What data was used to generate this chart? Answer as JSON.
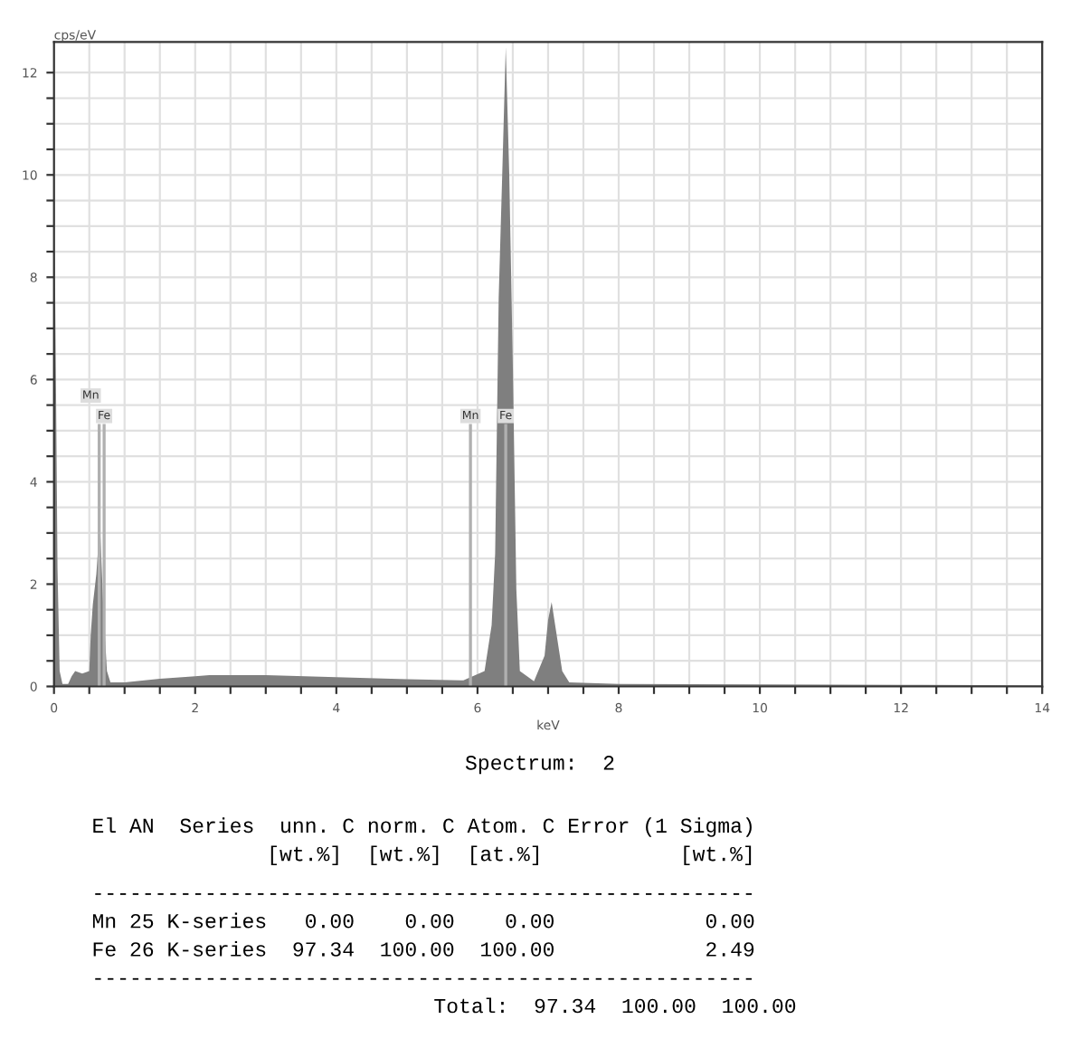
{
  "chart_data": {
    "type": "area",
    "xlabel": "keV",
    "ylabel": "cps/eV",
    "x": [
      0,
      0.01,
      0.03,
      0.05,
      0.08,
      0.12,
      0.2,
      0.25,
      0.3,
      0.4,
      0.5,
      0.52,
      0.55,
      0.6,
      0.65,
      0.7,
      0.75,
      0.8,
      1.0,
      1.5,
      2.0,
      2.2,
      3,
      4,
      5,
      5.8,
      6.1,
      6.2,
      6.25,
      6.3,
      6.35,
      6.4,
      6.45,
      6.5,
      6.55,
      6.6,
      6.8,
      6.95,
      7.0,
      7.05,
      7.1,
      7.2,
      7.3,
      8,
      10,
      12,
      14
    ],
    "series": [
      {
        "color": "#7f7f7f",
        "values": [
          0,
          8.7,
          5.6,
          2.3,
          0.3,
          0.05,
          0.05,
          0.2,
          0.3,
          0.25,
          0.3,
          1.0,
          1.6,
          2.2,
          3.2,
          1.5,
          0.3,
          0.08,
          0.08,
          0.15,
          0.2,
          0.22,
          0.22,
          0.18,
          0.14,
          0.12,
          0.3,
          1.2,
          2.6,
          7.6,
          10,
          12.5,
          10,
          6.3,
          1.9,
          0.3,
          0.1,
          0.6,
          1.3,
          1.65,
          1.2,
          0.3,
          0.08,
          0.05,
          0.04,
          0.03,
          0.02
        ]
      }
    ],
    "xlim": [
      0,
      14
    ],
    "ylim": [
      0,
      12.6
    ],
    "xticks": [
      0,
      {
        "value": 0.5,
        "label": null
      },
      {
        "value": 1,
        "label": null
      },
      {
        "value": 1.5,
        "label": null
      },
      2,
      {
        "value": 2.5,
        "label": null
      },
      {
        "value": 3,
        "label": null
      },
      {
        "value": 3.5,
        "label": null
      },
      4,
      {
        "value": 4.5,
        "label": null
      },
      {
        "value": 5,
        "label": null
      },
      {
        "value": 5.5,
        "label": null
      },
      6,
      {
        "value": 6.5,
        "label": null
      },
      {
        "value": 7,
        "label": null
      },
      {
        "value": 7.5,
        "label": null
      },
      8,
      {
        "value": 8.5,
        "label": null
      },
      {
        "value": 9,
        "label": null
      },
      {
        "value": 9.5,
        "label": null
      },
      10,
      {
        "value": 10.5,
        "label": null
      },
      {
        "value": 11,
        "label": null
      },
      {
        "value": 11.5,
        "label": null
      },
      12,
      {
        "value": 12.5,
        "label": null
      },
      {
        "value": 13,
        "label": null
      },
      {
        "value": 13.5,
        "label": null
      },
      14
    ],
    "yticks": [
      0,
      {
        "value": 0.5,
        "label": null
      },
      {
        "value": 1,
        "label": null
      },
      {
        "value": 1.5,
        "label": null
      },
      2,
      {
        "value": 2.5,
        "label": null
      },
      {
        "value": 3,
        "label": null
      },
      {
        "value": 3.5,
        "label": null
      },
      4,
      {
        "value": 4.5,
        "label": null
      },
      {
        "value": 5,
        "label": null
      },
      {
        "value": 5.5,
        "label": null
      },
      6,
      {
        "value": 6.5,
        "label": null
      },
      {
        "value": 7,
        "label": null
      },
      {
        "value": 7.5,
        "label": null
      },
      8,
      {
        "value": 8.5,
        "label": null
      },
      {
        "value": 9,
        "label": null
      },
      {
        "value": 9.5,
        "label": null
      },
      10,
      {
        "value": 10.5,
        "label": null
      },
      {
        "value": 11,
        "label": null
      },
      {
        "value": 11.5,
        "label": null
      },
      12
    ],
    "grid": true,
    "ref_lines": [
      {
        "axis": "x",
        "value": 0.64,
        "label": "Mn",
        "color": "#b0b0b0"
      },
      {
        "axis": "x",
        "value": 0.71,
        "label": "Fe",
        "color": "#b0b0b0"
      },
      {
        "axis": "x",
        "value": 5.9,
        "label": "Mn",
        "color": "#b0b0b0"
      },
      {
        "axis": "x",
        "value": 6.4,
        "label": "Fe",
        "color": "#b0b0b0"
      }
    ],
    "annotations": [
      "Spectrum:  2",
      "El AN  Series  unn. C norm. C Atom. C Error (1 Sigma)",
      "              [wt.%]  [wt.%]  [at.%]           [wt.%]",
      "-----------------------------------------------------",
      "Mn 25 K-series   0.00    0.00    0.00            0.00",
      "Fe 26 K-series  97.34  100.00  100.00            2.49",
      "-----------------------------------------------------",
      "            Total:  97.34  100.00  100.00"
    ]
  }
}
